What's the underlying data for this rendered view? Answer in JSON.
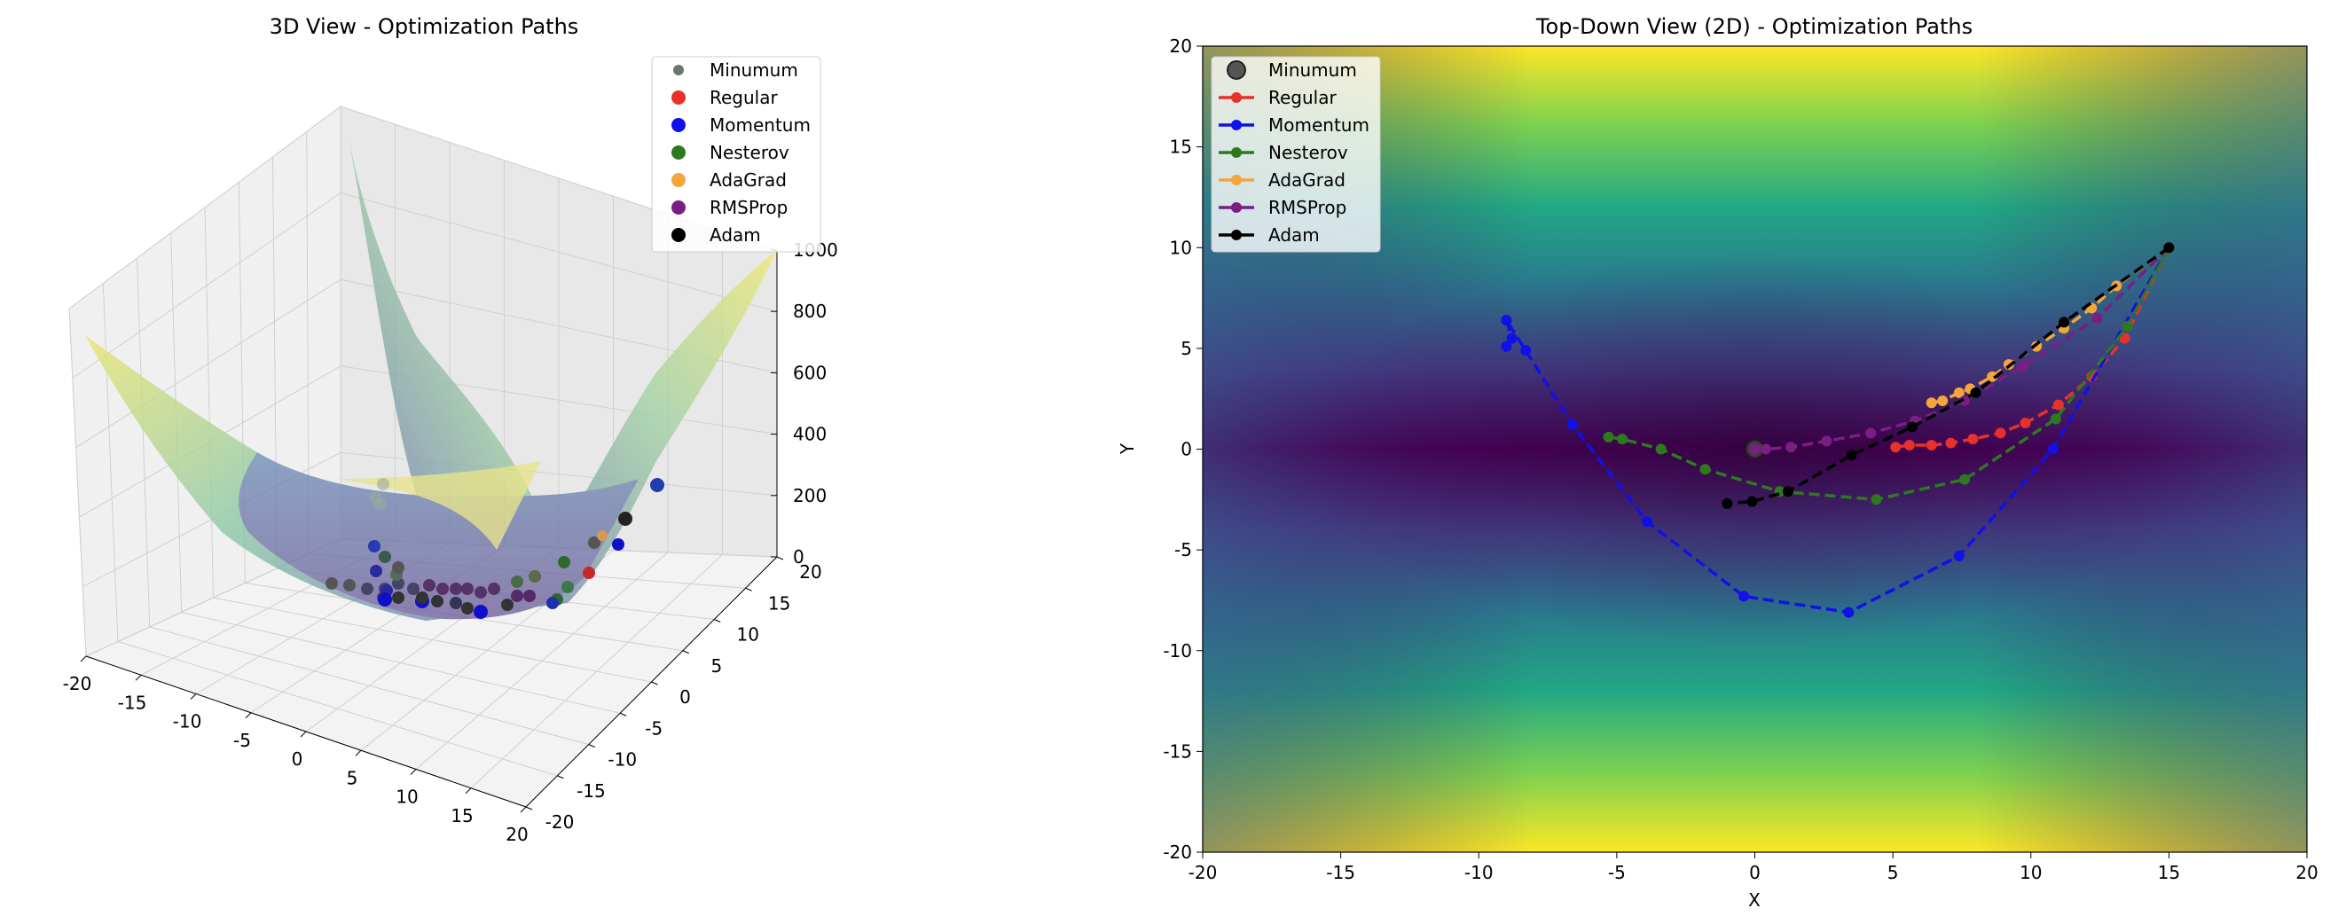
{
  "chart_data": [
    {
      "type": "3d-surface-scatter",
      "title": "3D View - Optimization Paths",
      "xlim": [
        -20,
        20
      ],
      "ylim": [
        -20,
        20
      ],
      "zlim": [
        0,
        1000
      ],
      "x_ticks": [
        -20,
        -15,
        -10,
        -5,
        0,
        5,
        10,
        15,
        20
      ],
      "y_ticks": [
        -20,
        -15,
        -10,
        -5,
        0,
        5,
        10,
        15,
        20
      ],
      "z_ticks": [
        0,
        200,
        400,
        600,
        800,
        1000
      ],
      "grid": true,
      "colormap": "viridis",
      "legend": {
        "placement": "top-right",
        "entries": [
          "Minumum",
          "Regular",
          "Momentum",
          "Nesterov",
          "AdaGrad",
          "RMSProp",
          "Adam"
        ]
      }
    },
    {
      "type": "line",
      "title": "Top-Down View (2D) - Optimization Paths",
      "xlabel": "X",
      "ylabel": "Y",
      "xlim": [
        -20,
        20
      ],
      "ylim": [
        -20,
        20
      ],
      "x_ticks": [
        -20,
        -15,
        -10,
        -5,
        0,
        5,
        10,
        15,
        20
      ],
      "y_ticks": [
        -20,
        -15,
        -10,
        -5,
        0,
        5,
        10,
        15,
        20
      ],
      "background": "viridis heatmap of the loss surface",
      "legend": {
        "placement": "top-left"
      },
      "minimum": {
        "name": "Minumum",
        "x": 0,
        "y": 0
      },
      "series": [
        {
          "name": "Regular",
          "color": "#e8312a",
          "points": [
            [
              15,
              10
            ],
            [
              13.4,
              5.5
            ],
            [
              12.2,
              3.6
            ],
            [
              11,
              2.2
            ],
            [
              9.8,
              1.3
            ],
            [
              8.9,
              0.8
            ],
            [
              7.9,
              0.5
            ],
            [
              7.1,
              0.3
            ],
            [
              6.4,
              0.2
            ],
            [
              5.6,
              0.2
            ],
            [
              5.1,
              0.1
            ]
          ]
        },
        {
          "name": "Momentum",
          "color": "#1010e8",
          "points": [
            [
              15,
              10
            ],
            [
              10.8,
              0
            ],
            [
              7.4,
              -5.3
            ],
            [
              3.4,
              -8.1
            ],
            [
              -0.4,
              -7.3
            ],
            [
              -3.9,
              -3.6
            ],
            [
              -6.6,
              1.2
            ],
            [
              -8.3,
              4.9
            ],
            [
              -9.0,
              6.4
            ],
            [
              -8.8,
              5.5
            ],
            [
              -9.0,
              5.1
            ]
          ]
        },
        {
          "name": "Nesterov",
          "color": "#2d7a1e",
          "points": [
            [
              15,
              10
            ],
            [
              13.5,
              6.1
            ],
            [
              10.9,
              1.5
            ],
            [
              7.6,
              -1.5
            ],
            [
              4.4,
              -2.5
            ],
            [
              0.9,
              -2.1
            ],
            [
              -1.8,
              -1.0
            ],
            [
              -3.4,
              0.0
            ],
            [
              -4.8,
              0.5
            ],
            [
              -5.3,
              0.6
            ]
          ]
        },
        {
          "name": "AdaGrad",
          "color": "#f4a53b",
          "points": [
            [
              15,
              10
            ],
            [
              13.1,
              8.1
            ],
            [
              12.2,
              7.0
            ],
            [
              11.2,
              6.0
            ],
            [
              10.2,
              5.1
            ],
            [
              9.2,
              4.2
            ],
            [
              8.6,
              3.6
            ],
            [
              7.8,
              3.0
            ],
            [
              7.4,
              2.8
            ],
            [
              6.8,
              2.4
            ],
            [
              6.4,
              2.3
            ]
          ]
        },
        {
          "name": "RMSProp",
          "color": "#7a1e84",
          "points": [
            [
              15,
              10
            ],
            [
              12.4,
              6.5
            ],
            [
              9.7,
              4.1
            ],
            [
              7.6,
              2.4
            ],
            [
              5.8,
              1.4
            ],
            [
              4.2,
              0.8
            ],
            [
              2.6,
              0.4
            ],
            [
              1.3,
              0.1
            ],
            [
              0.4,
              0.0
            ],
            [
              0.0,
              0.0
            ]
          ]
        },
        {
          "name": "Adam",
          "color": "#000000",
          "points": [
            [
              15,
              10
            ],
            [
              11.2,
              6.3
            ],
            [
              8.0,
              2.8
            ],
            [
              5.7,
              1.1
            ],
            [
              3.5,
              -0.3
            ],
            [
              1.2,
              -2.1
            ],
            [
              -0.1,
              -2.6
            ],
            [
              -1.0,
              -2.7
            ]
          ]
        }
      ]
    }
  ]
}
